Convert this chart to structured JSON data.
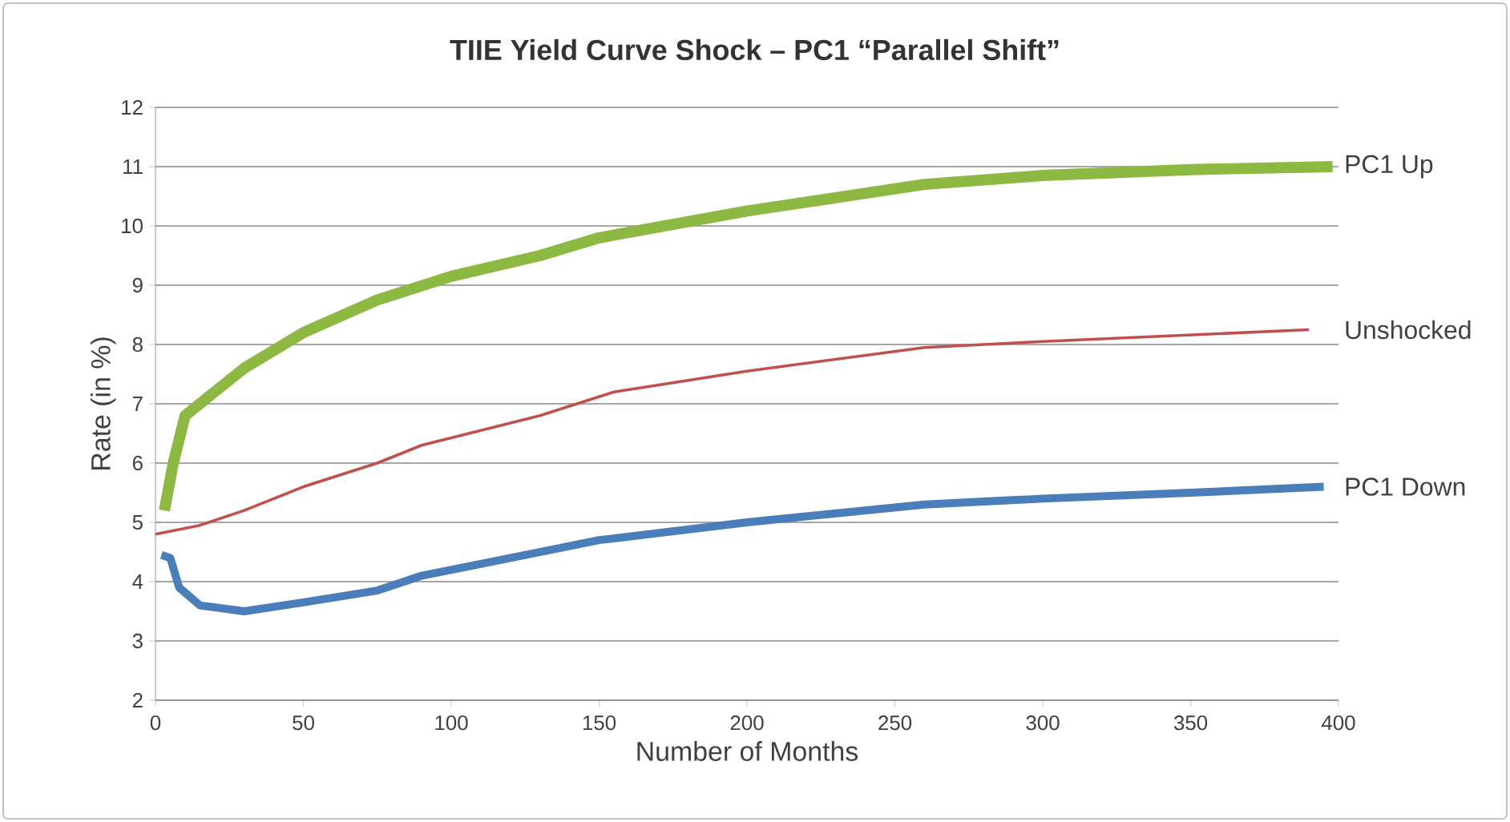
{
  "chart_data": {
    "type": "line",
    "title": "TIIE Yield Curve Shock – PC1 “Parallel Shift”",
    "xlabel": "Number of Months",
    "ylabel": "Rate (in %)",
    "xlim": [
      0,
      400
    ],
    "xticks": [
      0,
      50,
      100,
      150,
      200,
      250,
      300,
      350,
      400
    ],
    "ylim": [
      2,
      12
    ],
    "yticks": [
      2,
      3,
      4,
      5,
      6,
      7,
      8,
      9,
      10,
      11,
      12
    ],
    "grid": "y",
    "legend": false,
    "marker": "none",
    "line_style": "solid",
    "series": [
      {
        "name": "PC1 Up",
        "color": "#8db943",
        "x": [
          3,
          6,
          10,
          20,
          30,
          50,
          75,
          100,
          130,
          150,
          200,
          260,
          300,
          350,
          398
        ],
        "values": [
          5.2,
          6.0,
          6.8,
          7.2,
          7.6,
          8.2,
          8.75,
          9.15,
          9.5,
          9.8,
          10.25,
          10.7,
          10.85,
          10.95,
          11.0
        ]
      },
      {
        "name": "Unshocked",
        "color": "#c0504d",
        "x": [
          0,
          15,
          30,
          50,
          75,
          90,
          130,
          155,
          200,
          260,
          300,
          390
        ],
        "values": [
          4.8,
          4.95,
          5.2,
          5.6,
          6.0,
          6.3,
          6.8,
          7.2,
          7.55,
          7.95,
          8.05,
          8.25
        ]
      },
      {
        "name": "PC1 Down",
        "color": "#4a7ebb",
        "x": [
          2,
          5,
          8,
          15,
          30,
          50,
          75,
          90,
          110,
          150,
          200,
          260,
          300,
          350,
          395
        ],
        "values": [
          4.45,
          4.4,
          3.9,
          3.6,
          3.5,
          3.65,
          3.85,
          4.1,
          4.3,
          4.7,
          5.0,
          5.3,
          5.4,
          5.5,
          5.6
        ]
      }
    ]
  }
}
